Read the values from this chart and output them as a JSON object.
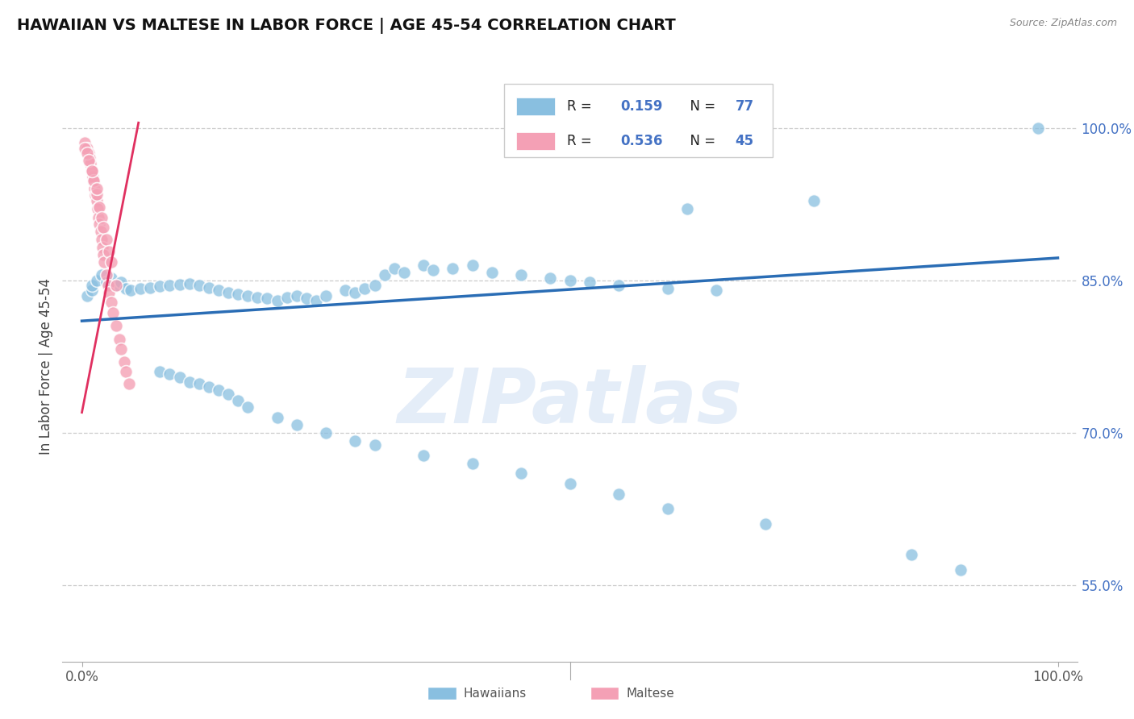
{
  "title": "HAWAIIAN VS MALTESE IN LABOR FORCE | AGE 45-54 CORRELATION CHART",
  "source": "Source: ZipAtlas.com",
  "ylabel": "In Labor Force | Age 45-54",
  "hawaiian_R": 0.159,
  "hawaiian_N": 77,
  "maltese_R": 0.536,
  "maltese_N": 45,
  "hawaiian_color": "#89bfe0",
  "maltese_color": "#f4a0b5",
  "trend_hawaiian_color": "#2a6db5",
  "trend_maltese_color": "#e03060",
  "watermark": "ZIPatlas",
  "yticks": [
    0.55,
    0.7,
    0.85,
    1.0
  ],
  "ytick_labels": [
    "55.0%",
    "70.0%",
    "85.0%",
    "100.0%"
  ],
  "xlim": [
    -0.02,
    1.02
  ],
  "ylim": [
    0.475,
    1.055
  ],
  "hawaiian_x": [
    0.005,
    0.01,
    0.01,
    0.015,
    0.02,
    0.025,
    0.03,
    0.035,
    0.04,
    0.045,
    0.05,
    0.06,
    0.07,
    0.08,
    0.09,
    0.1,
    0.11,
    0.12,
    0.13,
    0.14,
    0.15,
    0.16,
    0.17,
    0.18,
    0.19,
    0.2,
    0.21,
    0.22,
    0.23,
    0.24,
    0.25,
    0.27,
    0.28,
    0.29,
    0.3,
    0.31,
    0.32,
    0.33,
    0.35,
    0.36,
    0.38,
    0.4,
    0.42,
    0.45,
    0.48,
    0.5,
    0.52,
    0.55,
    0.6,
    0.65,
    0.08,
    0.09,
    0.1,
    0.11,
    0.12,
    0.13,
    0.14,
    0.15,
    0.16,
    0.17,
    0.2,
    0.22,
    0.25,
    0.28,
    0.3,
    0.35,
    0.4,
    0.45,
    0.5,
    0.55,
    0.6,
    0.7,
    0.85,
    0.9,
    0.98,
    0.62,
    0.75
  ],
  "hawaiian_y": [
    0.835,
    0.84,
    0.845,
    0.85,
    0.855,
    0.848,
    0.852,
    0.845,
    0.848,
    0.842,
    0.84,
    0.842,
    0.843,
    0.844,
    0.845,
    0.846,
    0.847,
    0.845,
    0.843,
    0.84,
    0.838,
    0.836,
    0.835,
    0.833,
    0.832,
    0.83,
    0.833,
    0.835,
    0.832,
    0.83,
    0.835,
    0.84,
    0.838,
    0.842,
    0.845,
    0.855,
    0.862,
    0.858,
    0.865,
    0.86,
    0.862,
    0.865,
    0.858,
    0.855,
    0.852,
    0.85,
    0.848,
    0.845,
    0.842,
    0.84,
    0.76,
    0.758,
    0.755,
    0.75,
    0.748,
    0.745,
    0.742,
    0.738,
    0.732,
    0.725,
    0.715,
    0.708,
    0.7,
    0.692,
    0.688,
    0.678,
    0.67,
    0.66,
    0.65,
    0.64,
    0.625,
    0.61,
    0.58,
    0.565,
    1.0,
    0.92,
    0.928
  ],
  "maltese_x": [
    0.003,
    0.005,
    0.007,
    0.008,
    0.009,
    0.01,
    0.011,
    0.012,
    0.013,
    0.014,
    0.015,
    0.016,
    0.017,
    0.018,
    0.019,
    0.02,
    0.021,
    0.022,
    0.023,
    0.025,
    0.027,
    0.028,
    0.03,
    0.032,
    0.035,
    0.038,
    0.04,
    0.043,
    0.045,
    0.048,
    0.01,
    0.012,
    0.015,
    0.018,
    0.02,
    0.022,
    0.025,
    0.028,
    0.03,
    0.035,
    0.003,
    0.005,
    0.007,
    0.01,
    0.015
  ],
  "maltese_y": [
    0.985,
    0.98,
    0.975,
    0.97,
    0.965,
    0.958,
    0.952,
    0.947,
    0.94,
    0.934,
    0.928,
    0.92,
    0.912,
    0.905,
    0.898,
    0.89,
    0.882,
    0.875,
    0.868,
    0.855,
    0.845,
    0.838,
    0.828,
    0.818,
    0.805,
    0.792,
    0.782,
    0.77,
    0.76,
    0.748,
    0.958,
    0.948,
    0.935,
    0.922,
    0.912,
    0.902,
    0.89,
    0.878,
    0.868,
    0.845,
    0.98,
    0.975,
    0.968,
    0.958,
    0.94
  ],
  "trend_h_x0": 0.0,
  "trend_h_x1": 1.0,
  "trend_h_y0": 0.81,
  "trend_h_y1": 0.872,
  "trend_m_x0": 0.0,
  "trend_m_x1": 0.058,
  "trend_m_y0": 0.72,
  "trend_m_y1": 1.005
}
